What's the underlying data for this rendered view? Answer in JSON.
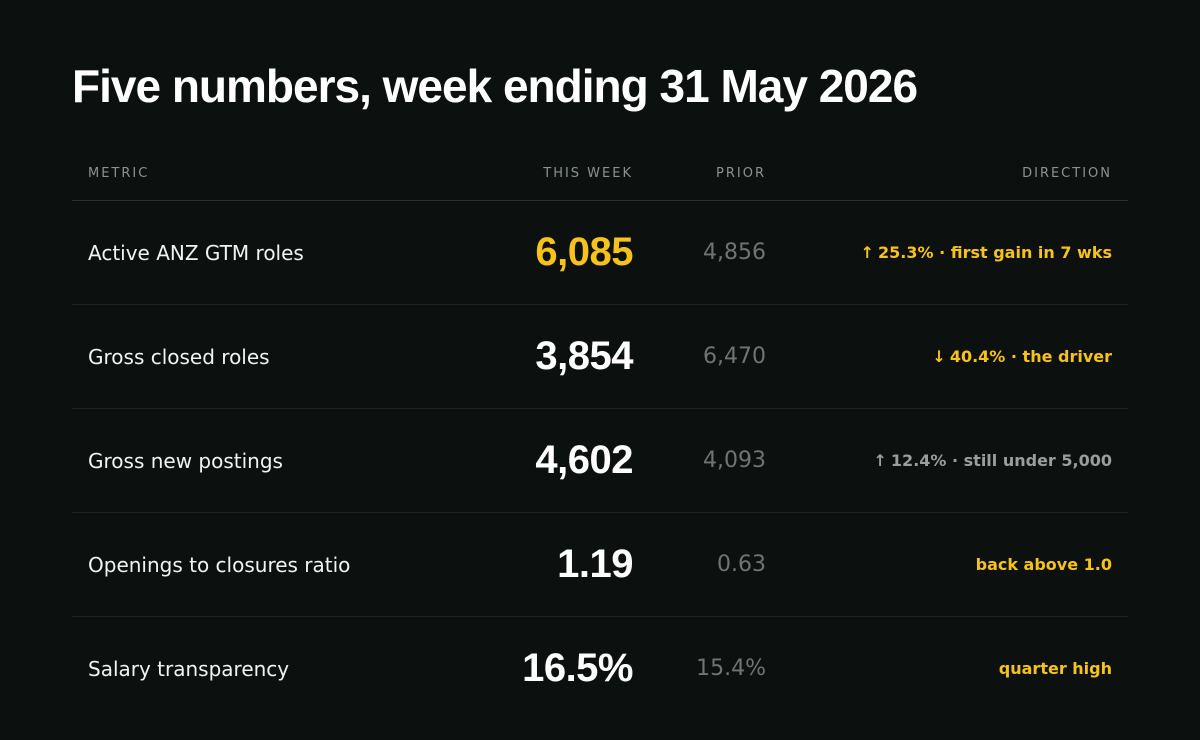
{
  "title": "Five numbers, week ending 31 May 2026",
  "colors": {
    "background": "#0c110f",
    "accent": "#f7c31a",
    "muted": "#6f7573"
  },
  "headers": {
    "metric": "METRIC",
    "this_week": "THIS WEEK",
    "prior": "PRIOR",
    "direction": "DIRECTION"
  },
  "rows": [
    {
      "metric": "Active ANZ GTM roles",
      "this_week": "6,085",
      "prior": "4,856",
      "direction_arrow": "↑",
      "direction_icon": "arrow-up-icon",
      "direction": "25.3% · first gain in 7 wks"
    },
    {
      "metric": "Gross closed roles",
      "this_week": "3,854",
      "prior": "6,470",
      "direction_arrow": "↓",
      "direction_icon": "arrow-down-icon",
      "direction": "40.4% · the driver"
    },
    {
      "metric": "Gross new postings",
      "this_week": "4,602",
      "prior": "4,093",
      "direction_arrow": "↑",
      "direction_icon": "arrow-up-icon",
      "direction": "12.4% · still under 5,000"
    },
    {
      "metric": "Openings to closures ratio",
      "this_week": "1.19",
      "prior": "0.63",
      "direction": "back above 1.0"
    },
    {
      "metric": "Salary transparency",
      "this_week": "16.5%",
      "prior": "15.4%",
      "direction": "quarter high"
    }
  ]
}
